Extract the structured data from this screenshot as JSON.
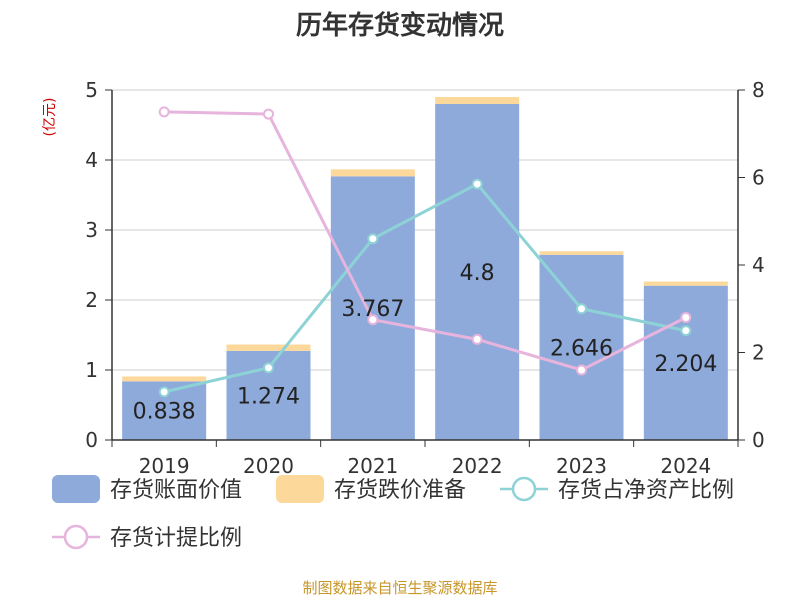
{
  "chart_data": {
    "type": "bar",
    "title": "历年存货变动情况",
    "y_left_unit": "(亿元)",
    "categories": [
      "2019",
      "2020",
      "2021",
      "2022",
      "2023",
      "2024"
    ],
    "y_left_ticks": [
      "0",
      "1",
      "2",
      "3",
      "4",
      "5"
    ],
    "y_right_ticks": [
      "0",
      "2",
      "4",
      "6",
      "8"
    ],
    "ylim_left": [
      0,
      5
    ],
    "ylim_right": [
      0,
      8
    ],
    "series": [
      {
        "name": "存货账面价值",
        "type": "bar",
        "axis": "left",
        "color": "#8eaadb",
        "values": [
          0.838,
          1.274,
          3.767,
          4.8,
          2.646,
          2.204
        ],
        "labels": [
          "0.838",
          "1.274",
          "3.767",
          "4.8",
          "2.646",
          "2.204"
        ]
      },
      {
        "name": "存货跌价准备",
        "type": "bar-stacked",
        "axis": "left",
        "color": "#fdd89b",
        "values": [
          0.07,
          0.09,
          0.1,
          0.1,
          0.05,
          0.06
        ]
      },
      {
        "name": "存货占净资产比例",
        "type": "line",
        "axis": "right",
        "color": "#8dd3d6",
        "values": [
          1.1,
          1.65,
          4.6,
          5.85,
          3.0,
          2.5
        ]
      },
      {
        "name": "存货计提比例",
        "type": "line",
        "axis": "right",
        "color": "#e6b4dc",
        "values": [
          7.5,
          7.45,
          2.75,
          2.3,
          1.6,
          2.8
        ]
      }
    ],
    "grid": true,
    "legend_position": "bottom"
  },
  "footer": {
    "source": "制图数据来自恒生聚源数据库"
  }
}
